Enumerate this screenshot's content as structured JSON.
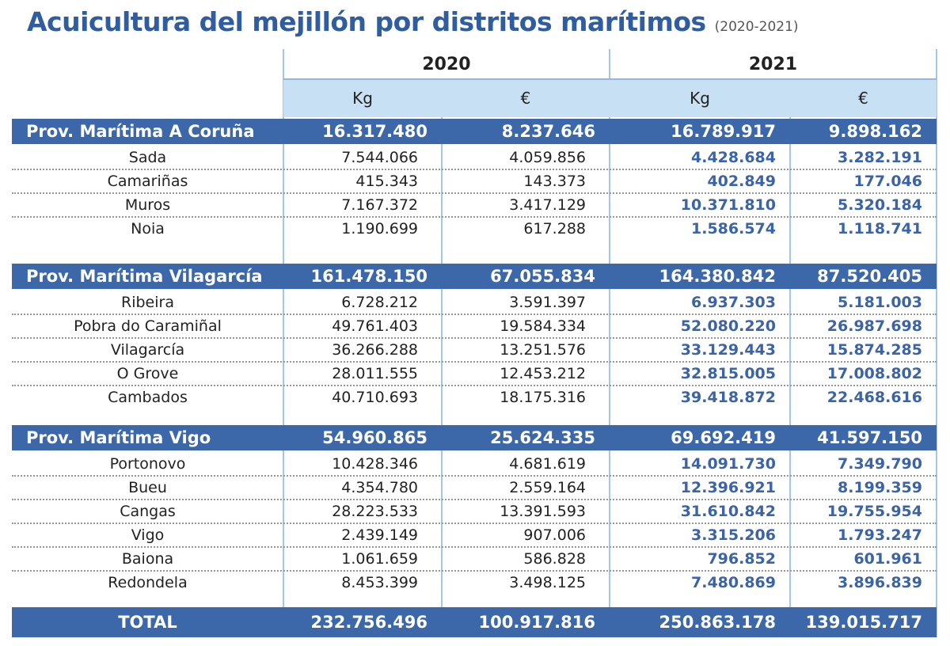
{
  "header": {
    "title": "Acuicultura del mejillón por distritos marítimos",
    "subtitle": "(2020-2021)"
  },
  "table": {
    "years": [
      "2020",
      "2021"
    ],
    "units": [
      "Kg",
      "€",
      "Kg",
      "€"
    ],
    "sections": [
      {
        "name": "Prov. Marítima A Coruña",
        "values": [
          "16.317.480",
          "8.237.646",
          "16.789.917",
          "9.898.162"
        ],
        "rows": [
          [
            "Sada",
            "7.544.066",
            "4.059.856",
            "4.428.684",
            "3.282.191"
          ],
          [
            "Camariñas",
            "415.343",
            "143.373",
            "402.849",
            "177.046"
          ],
          [
            "Muros",
            "7.167.372",
            "3.417.129",
            "10.371.810",
            "5.320.184"
          ],
          [
            "Noia",
            "1.190.699",
            "617.288",
            "1.586.574",
            "1.118.741"
          ]
        ]
      },
      {
        "name": "Prov. Marítima Vilagarcía",
        "values": [
          "161.478.150",
          "67.055.834",
          "164.380.842",
          "87.520.405"
        ],
        "rows": [
          [
            "Ribeira",
            "6.728.212",
            "3.591.397",
            "6.937.303",
            "5.181.003"
          ],
          [
            "Pobra do Caramiñal",
            "49.761.403",
            "19.584.334",
            "52.080.220",
            "26.987.698"
          ],
          [
            "Vilagarcía",
            "36.266.288",
            "13.251.576",
            "33.129.443",
            "15.874.285"
          ],
          [
            "O Grove",
            "28.011.555",
            "12.453.212",
            "32.815.005",
            "17.008.802"
          ],
          [
            "Cambados",
            "40.710.693",
            "18.175.316",
            "39.418.872",
            "22.468.616"
          ]
        ]
      },
      {
        "name": "Prov. Marítima Vigo",
        "values": [
          "54.960.865",
          "25.624.335",
          "69.692.419",
          "41.597.150"
        ],
        "rows": [
          [
            "Portonovo",
            "10.428.346",
            "4.681.619",
            "14.091.730",
            "7.349.790"
          ],
          [
            "Bueu",
            "4.354.780",
            "2.559.164",
            "12.396.921",
            "8.199.359"
          ],
          [
            "Cangas",
            "28.223.533",
            "13.391.593",
            "31.610.842",
            "19.755.954"
          ],
          [
            "Vigo",
            "2.439.149",
            "907.006",
            "3.315.206",
            "1.793.247"
          ],
          [
            "Baiona",
            "1.061.659",
            "586.828",
            "796.852",
            "601.961"
          ],
          [
            "Redondela",
            "8.453.399",
            "3.498.125",
            "7.480.869",
            "3.896.839"
          ]
        ]
      }
    ],
    "total": {
      "label": "TOTAL",
      "values": [
        "232.756.496",
        "100.917.816",
        "250.863.178",
        "139.015.717"
      ]
    }
  }
}
